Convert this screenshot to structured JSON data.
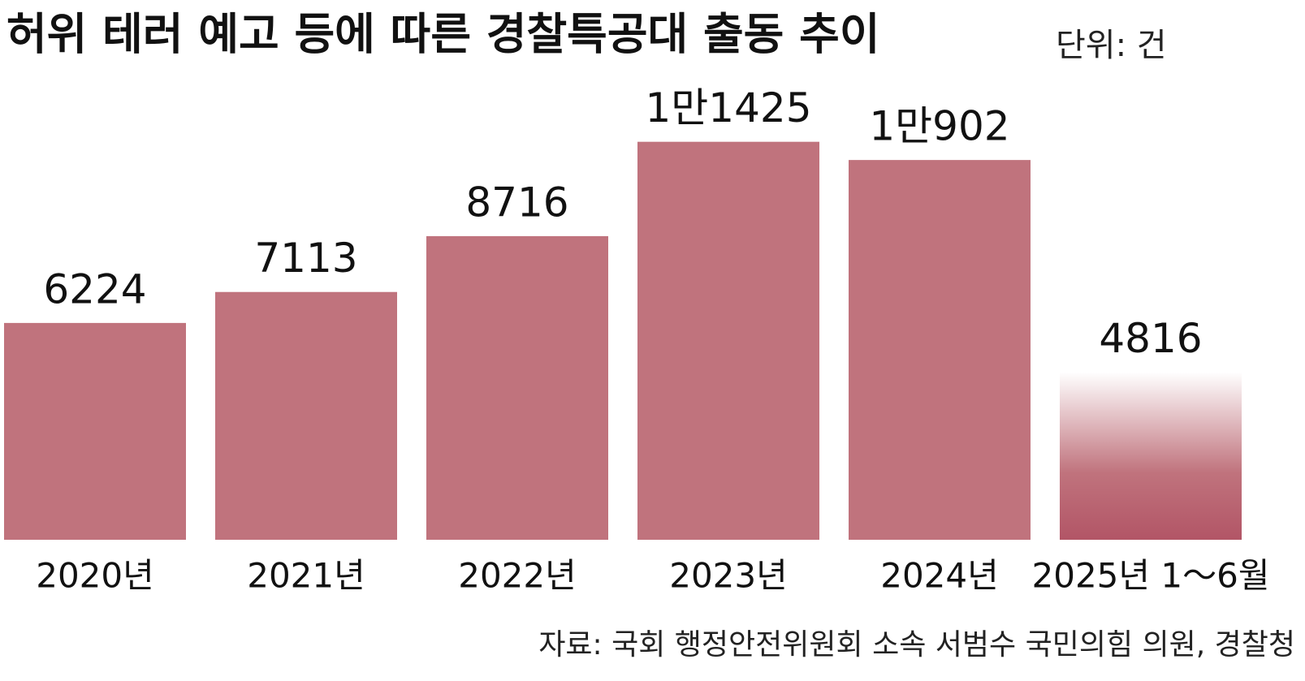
{
  "chart_data": {
    "type": "bar",
    "title": "허위 테러 예고 등에 따른 경찰특공대 출동 추이",
    "unit": "단위: 건",
    "source": "자료: 국회 행정안전위원회 소속 서범수 국민의힘 의원, 경찰청",
    "categories": [
      "2020년",
      "2021년",
      "2022년",
      "2023년",
      "2024년",
      "2025년 1～6월"
    ],
    "values": [
      6224,
      7113,
      8716,
      11425,
      10902,
      4816
    ],
    "value_labels": [
      "6224",
      "7113",
      "8716",
      "1만1425",
      "1만902",
      "4816"
    ],
    "color": "#c0737d",
    "ylim": [
      0,
      12000
    ]
  }
}
